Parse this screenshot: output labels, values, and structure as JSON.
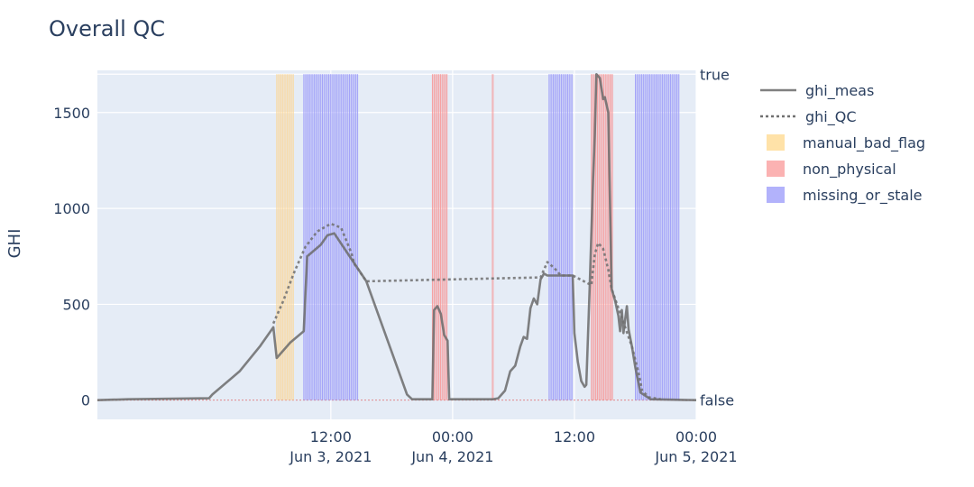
{
  "chart_data": {
    "type": "line",
    "title": "Overall QC",
    "xlabel": "",
    "ylabel": "GHI",
    "y2_label": "",
    "xlim": [
      "2021-06-02 13:00",
      "2021-06-05 00:00"
    ],
    "ylim": [
      -100,
      1720
    ],
    "y_ticks": [
      0,
      500,
      1000,
      1500
    ],
    "y_tick_labels": [
      "0",
      "500",
      "1000",
      "1500"
    ],
    "y2_tick_labels": [
      "true",
      "false"
    ],
    "x_ticks": [
      {
        "x": "2021-06-03 12:00",
        "time": "12:00",
        "date": "Jun 3, 2021"
      },
      {
        "x": "2021-06-04 00:00",
        "time": "00:00",
        "date": "Jun 4, 2021"
      },
      {
        "x": "2021-06-04 12:00",
        "time": "12:00",
        "date": ""
      },
      {
        "x": "2021-06-05 00:00",
        "time": "00:00",
        "date": "Jun 5, 2021"
      }
    ],
    "grid": true,
    "legend_position": "right",
    "legend": [
      {
        "label": "ghi_meas",
        "kind": "line",
        "color": "#808080"
      },
      {
        "label": "ghi_QC",
        "kind": "dotted",
        "color": "#707070"
      },
      {
        "label": "manual_bad_flag",
        "kind": "box",
        "color": "#FFE2A8"
      },
      {
        "label": "non_physical",
        "kind": "box",
        "color": "#FBB2B2"
      },
      {
        "label": "missing_or_stale",
        "kind": "box",
        "color": "#B2B2FB"
      }
    ],
    "flag_bands": [
      {
        "flag": "manual_bad_flag",
        "start": "2021-06-03 06:40",
        "end": "2021-06-03 08:20",
        "color": "#FBD799"
      },
      {
        "flag": "missing_or_stale",
        "start": "2021-06-03 09:20",
        "end": "2021-06-03 14:40",
        "color": "#9F9FF8"
      },
      {
        "flag": "non_physical",
        "start": "2021-06-03 22:00",
        "end": "2021-06-03 23:30",
        "color": "#F79A9A"
      },
      {
        "flag": "non_physical",
        "start": "2021-06-04 03:55",
        "end": "2021-06-04 04:05",
        "color": "#F79A9A"
      },
      {
        "flag": "missing_or_stale",
        "start": "2021-06-04 09:30",
        "end": "2021-06-04 11:50",
        "color": "#9F9FF8"
      },
      {
        "flag": "non_physical",
        "start": "2021-06-04 13:40",
        "end": "2021-06-04 15:50",
        "color": "#F79A9A"
      },
      {
        "flag": "missing_or_stale",
        "start": "2021-06-04 18:00",
        "end": "2021-06-04 22:20",
        "color": "#9F9FF8"
      }
    ],
    "series": [
      {
        "name": "ghi_meas",
        "style": "solid",
        "color": "#6b6b6b",
        "points": [
          [
            "2021-06-02 13:00",
            0
          ],
          [
            "2021-06-02 16:00",
            5
          ],
          [
            "2021-06-03 00:00",
            10
          ],
          [
            "2021-06-03 00:20",
            30
          ],
          [
            "2021-06-03 03:00",
            150
          ],
          [
            "2021-06-03 05:00",
            280
          ],
          [
            "2021-06-03 06:20",
            380
          ],
          [
            "2021-06-03 06:40",
            220
          ],
          [
            "2021-06-03 08:00",
            300
          ],
          [
            "2021-06-03 09:20",
            360
          ],
          [
            "2021-06-03 09:40",
            750
          ],
          [
            "2021-06-03 11:00",
            810
          ],
          [
            "2021-06-03 11:40",
            860
          ],
          [
            "2021-06-03 12:20",
            870
          ],
          [
            "2021-06-03 15:30",
            620
          ],
          [
            "2021-06-03 19:30",
            30
          ],
          [
            "2021-06-03 20:00",
            5
          ],
          [
            "2021-06-03 22:00",
            5
          ],
          [
            "2021-06-03 22:10",
            470
          ],
          [
            "2021-06-03 22:30",
            490
          ],
          [
            "2021-06-03 22:50",
            450
          ],
          [
            "2021-06-03 23:10",
            340
          ],
          [
            "2021-06-03 23:30",
            310
          ],
          [
            "2021-06-03 23:40",
            5
          ],
          [
            "2021-06-04 04:00",
            5
          ],
          [
            "2021-06-04 04:30",
            10
          ],
          [
            "2021-06-04 05:10",
            50
          ],
          [
            "2021-06-04 05:40",
            150
          ],
          [
            "2021-06-04 06:10",
            180
          ],
          [
            "2021-06-04 06:40",
            280
          ],
          [
            "2021-06-04 07:00",
            330
          ],
          [
            "2021-06-04 07:20",
            320
          ],
          [
            "2021-06-04 07:40",
            480
          ],
          [
            "2021-06-04 08:00",
            530
          ],
          [
            "2021-06-04 08:20",
            500
          ],
          [
            "2021-06-04 08:40",
            630
          ],
          [
            "2021-06-04 09:00",
            660
          ],
          [
            "2021-06-04 09:20",
            650
          ],
          [
            "2021-06-04 11:50",
            650
          ],
          [
            "2021-06-04 12:00",
            350
          ],
          [
            "2021-06-04 12:20",
            200
          ],
          [
            "2021-06-04 12:40",
            100
          ],
          [
            "2021-06-04 13:00",
            70
          ],
          [
            "2021-06-04 13:10",
            80
          ],
          [
            "2021-06-04 13:30",
            580
          ],
          [
            "2021-06-04 13:50",
            1150
          ],
          [
            "2021-06-04 14:00",
            1380
          ],
          [
            "2021-06-04 14:10",
            1700
          ],
          [
            "2021-06-04 14:30",
            1680
          ],
          [
            "2021-06-04 14:50",
            1570
          ],
          [
            "2021-06-04 15:00",
            1580
          ],
          [
            "2021-06-04 15:20",
            1500
          ],
          [
            "2021-06-04 15:40",
            580
          ],
          [
            "2021-06-04 16:00",
            520
          ],
          [
            "2021-06-04 16:20",
            440
          ],
          [
            "2021-06-04 16:30",
            360
          ],
          [
            "2021-06-04 16:40",
            470
          ],
          [
            "2021-06-04 16:50",
            350
          ],
          [
            "2021-06-04 17:10",
            490
          ],
          [
            "2021-06-04 17:20",
            370
          ],
          [
            "2021-06-04 17:40",
            280
          ],
          [
            "2021-06-04 18:00",
            170
          ],
          [
            "2021-06-04 18:30",
            40
          ],
          [
            "2021-06-04 19:30",
            5
          ],
          [
            "2021-06-05 00:00",
            0
          ]
        ]
      },
      {
        "name": "ghi_QC",
        "style": "dotted",
        "color": "#707070",
        "points": [
          [
            "2021-06-03 06:20",
            400
          ],
          [
            "2021-06-03 07:20",
            520
          ],
          [
            "2021-06-03 08:20",
            660
          ],
          [
            "2021-06-03 09:30",
            800
          ],
          [
            "2021-06-03 10:40",
            880
          ],
          [
            "2021-06-03 12:00",
            920
          ],
          [
            "2021-06-03 13:00",
            900
          ],
          [
            "2021-06-03 14:00",
            770
          ],
          [
            "2021-06-03 14:20",
            710
          ],
          [
            "2021-06-03 15:30",
            620
          ],
          [
            "2021-06-04 08:40",
            640
          ],
          [
            "2021-06-04 09:20",
            720
          ],
          [
            "2021-06-04 10:00",
            690
          ],
          [
            "2021-06-04 10:40",
            650
          ],
          [
            "2021-06-04 11:50",
            650
          ],
          [
            "2021-06-04 13:40",
            600
          ],
          [
            "2021-06-04 14:00",
            760
          ],
          [
            "2021-06-04 14:20",
            820
          ],
          [
            "2021-06-04 14:50",
            790
          ],
          [
            "2021-06-04 15:20",
            680
          ],
          [
            "2021-06-04 15:40",
            580
          ],
          [
            "2021-06-04 17:40",
            280
          ],
          [
            "2021-06-04 18:20",
            140
          ],
          [
            "2021-06-04 18:40",
            50
          ],
          [
            "2021-06-04 19:20",
            15
          ],
          [
            "2021-06-04 20:30",
            5
          ]
        ]
      }
    ]
  }
}
